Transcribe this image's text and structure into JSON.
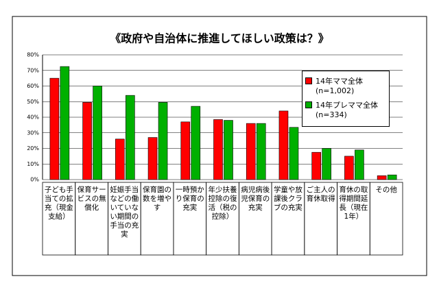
{
  "chart_data": {
    "type": "bar",
    "title": "《政府や自治体に推進してほしい政策は？》",
    "categories": [
      "子ども手当ての拡充（現金支給）",
      "保育サービスの無償化",
      "妊娠手当などの働いていない期間の手当の充実",
      "保育園の数を増やす",
      "一時預かり保育の充実",
      "年少扶養控除の復活（税の控除）",
      "病児病後児保育の充実",
      "学童や放課後クラブの充実",
      "ご主人の育休取得",
      "育休の取得期間延長（現在1年）",
      "その他"
    ],
    "series": [
      {
        "name": "14年ママ全体 (n=1,002)",
        "color": "#ff0000",
        "values": [
          65,
          49.5,
          26,
          27,
          37,
          38.5,
          36,
          44,
          17.5,
          15,
          2.5
        ]
      },
      {
        "name": "14年プレママ全体 (n=334)",
        "color": "#00b000",
        "values": [
          72.5,
          60,
          54,
          49.5,
          47,
          38,
          36,
          33.5,
          20,
          19,
          3
        ]
      }
    ],
    "ylim": [
      0,
      80
    ],
    "yticks": [
      {
        "value": 0,
        "label": "0%"
      },
      {
        "value": 10,
        "label": "10%"
      },
      {
        "value": 20,
        "label": "20%"
      },
      {
        "value": 30,
        "label": "30%"
      },
      {
        "value": 40,
        "label": "40%"
      },
      {
        "value": 50,
        "label": "50%"
      },
      {
        "value": 60,
        "label": "60%"
      },
      {
        "value": 70,
        "label": "70%"
      },
      {
        "value": 80,
        "label": "80%"
      }
    ],
    "grid": true
  }
}
